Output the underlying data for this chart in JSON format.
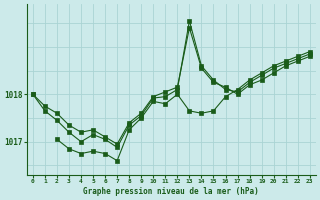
{
  "title": "Graphe pression niveau de la mer (hPa)",
  "background_color": "#cceaea",
  "line_color": "#1a5c1a",
  "grid_color": "#aad4d4",
  "text_color": "#1a5c1a",
  "x_ticks": [
    0,
    1,
    2,
    3,
    4,
    5,
    6,
    7,
    8,
    9,
    10,
    11,
    12,
    13,
    14,
    15,
    16,
    17,
    18,
    19,
    20,
    21,
    22,
    23
  ],
  "y_ticks": [
    1017,
    1018
  ],
  "ylim": [
    1016.3,
    1019.9
  ],
  "xlim": [
    -0.5,
    23.5
  ],
  "hgrid_vals": [
    1016.5,
    1017.0,
    1017.5,
    1018.0,
    1018.5,
    1019.0,
    1019.5
  ],
  "series": [
    {
      "x": [
        0,
        1,
        2,
        3,
        4,
        5,
        6,
        7,
        8,
        9,
        10,
        11,
        12,
        13,
        14,
        15,
        16,
        17,
        18,
        19,
        20,
        21,
        22,
        23
      ],
      "y": [
        1018.0,
        1017.75,
        1017.6,
        1017.35,
        1017.2,
        1017.25,
        1017.1,
        1016.95,
        1017.4,
        1017.6,
        1017.95,
        1018.05,
        1018.15,
        1019.4,
        1018.55,
        1018.25,
        1018.15,
        1018.0,
        1018.2,
        1018.3,
        1018.45,
        1018.6,
        1018.7,
        1018.8
      ]
    },
    {
      "x": [
        2,
        3,
        4,
        5,
        6,
        7,
        8,
        9,
        10,
        11,
        12,
        13,
        14,
        15,
        16,
        17,
        18,
        19,
        20,
        21,
        22,
        23
      ],
      "y": [
        1017.05,
        1016.85,
        1016.75,
        1016.8,
        1016.75,
        1016.6,
        1017.25,
        1017.5,
        1017.85,
        1017.8,
        1018.0,
        1017.65,
        1017.6,
        1017.65,
        1017.95,
        1018.1,
        1018.3,
        1018.45,
        1018.6,
        1018.7,
        1018.8,
        1018.9
      ]
    },
    {
      "x": [
        0,
        1,
        2,
        3,
        4,
        5,
        6,
        7,
        8,
        9,
        10,
        11,
        12,
        13,
        14,
        15,
        16,
        17,
        18,
        19,
        20,
        21,
        22,
        23
      ],
      "y": [
        1018.0,
        1017.65,
        1017.45,
        1017.2,
        1017.0,
        1017.15,
        1017.05,
        1016.88,
        1017.35,
        1017.55,
        1017.92,
        1017.95,
        1018.1,
        1019.55,
        1018.6,
        1018.3,
        1018.1,
        1018.05,
        1018.25,
        1018.4,
        1018.55,
        1018.65,
        1018.75,
        1018.85
      ]
    }
  ],
  "figsize": [
    3.2,
    2.0
  ],
  "dpi": 100
}
